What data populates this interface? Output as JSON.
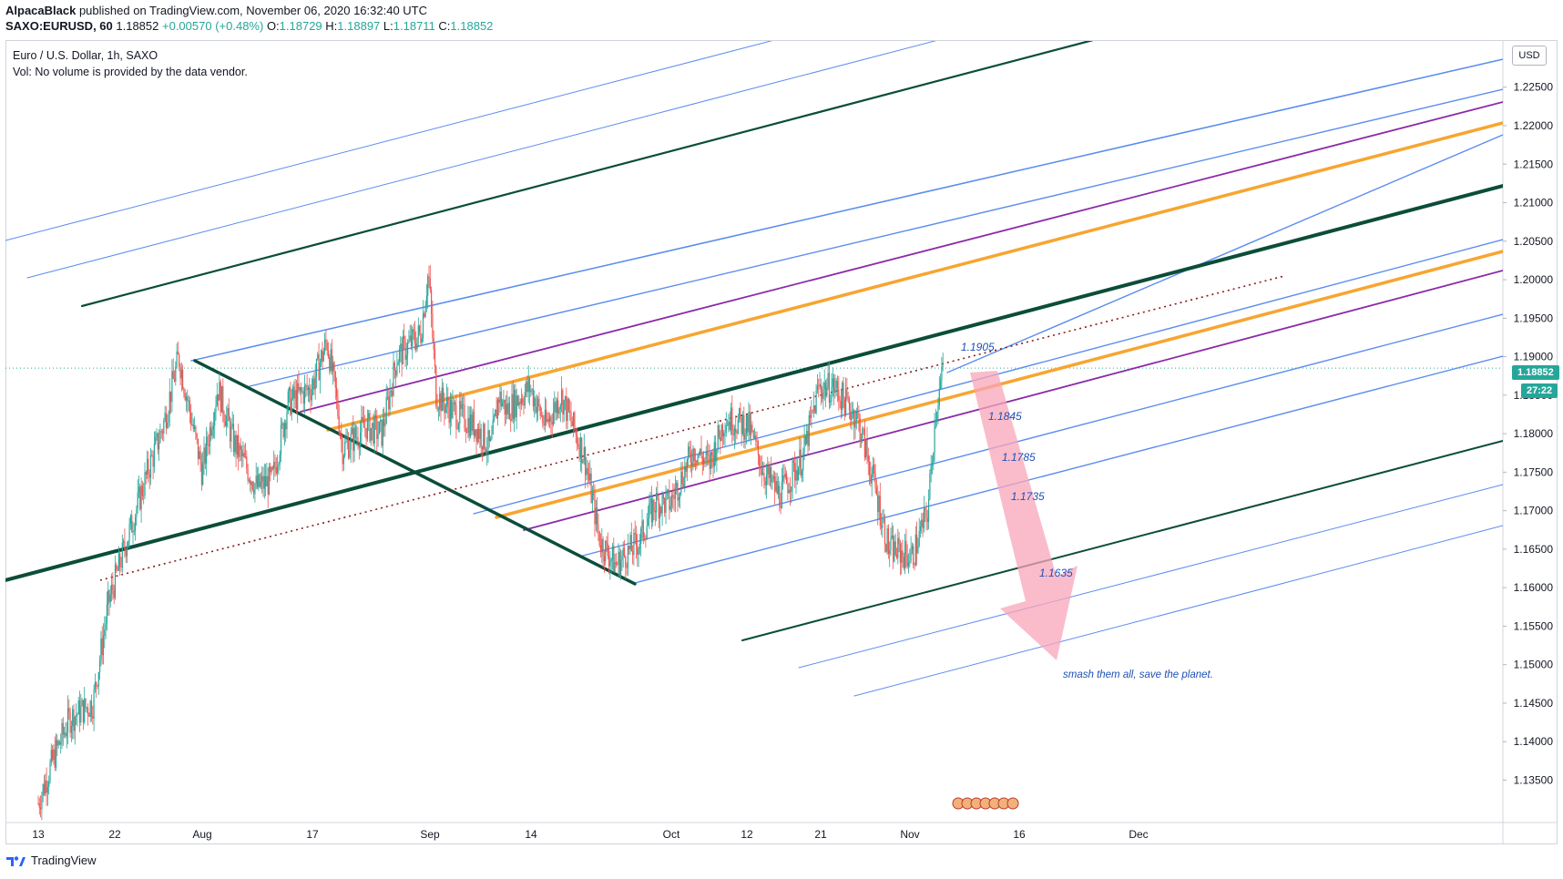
{
  "header": {
    "author": "AlpacaBlack",
    "published": "published on TradingView.com, November 06, 2020 16:32:40 UTC",
    "symbol": "SAXO:EURUSD, 60",
    "last": "1.18852",
    "change": "+0.00570 (+0.48%)",
    "o_label": "O:",
    "o": "1.18729",
    "h_label": "H:",
    "h": "1.18897",
    "l_label": "L:",
    "l": "1.18711",
    "c_label": "C:",
    "c": "1.18852"
  },
  "legend": {
    "title": "Euro / U.S. Dollar, 1h, SAXO",
    "volume_note": "Vol: No volume is provided by the data vendor."
  },
  "price_axis": {
    "currency": "USD",
    "current_price": "1.18852",
    "countdown": "27:22"
  },
  "footer": {
    "brand": "TradingView"
  },
  "colors": {
    "up": "#26a69a",
    "down": "#ef5350",
    "blue_line": "#5b8def",
    "dark_green": "#0b4d3a",
    "orange": "#f7a531",
    "purple": "#8a2aa8",
    "dotted": "#8b1a1a",
    "price_tag": "#26a69a",
    "arrow": "#f8a5b9"
  },
  "chart_data": {
    "type": "candlestick",
    "title": "Euro / U.S. Dollar, 1h, SAXO",
    "x_ticks": [
      "13",
      "22",
      "Aug",
      "17",
      "Sep",
      "14",
      "Oct",
      "12",
      "21",
      "Nov",
      "16",
      "Dec"
    ],
    "y_ticks": [
      "1.13500",
      "1.14000",
      "1.14500",
      "1.15000",
      "1.15500",
      "1.16000",
      "1.16500",
      "1.17000",
      "1.17500",
      "1.18000",
      "1.18500",
      "1.19000",
      "1.19500",
      "1.20000",
      "1.20500",
      "1.21000",
      "1.21500",
      "1.22000",
      "1.22500"
    ],
    "ylim": [
      1.1295,
      1.231
    ],
    "price_path": [
      [
        "2020-07-13",
        1.132
      ],
      [
        "2020-07-15",
        1.138
      ],
      [
        "2020-07-17",
        1.143
      ],
      [
        "2020-07-20",
        1.145
      ],
      [
        "2020-07-22",
        1.158
      ],
      [
        "2020-07-24",
        1.165
      ],
      [
        "2020-07-27",
        1.175
      ],
      [
        "2020-07-29",
        1.181
      ],
      [
        "2020-07-31",
        1.19
      ],
      [
        "2020-08-03",
        1.175
      ],
      [
        "2020-08-05",
        1.186
      ],
      [
        "2020-08-07",
        1.179
      ],
      [
        "2020-08-10",
        1.173
      ],
      [
        "2020-08-12",
        1.174
      ],
      [
        "2020-08-14",
        1.184
      ],
      [
        "2020-08-17",
        1.186
      ],
      [
        "2020-08-19",
        1.192
      ],
      [
        "2020-08-20",
        1.186
      ],
      [
        "2020-08-21",
        1.178
      ],
      [
        "2020-08-24",
        1.181
      ],
      [
        "2020-08-26",
        1.18
      ],
      [
        "2020-08-28",
        1.19
      ],
      [
        "2020-08-31",
        1.193
      ],
      [
        "2020-09-01",
        1.201
      ],
      [
        "2020-09-02",
        1.185
      ],
      [
        "2020-09-04",
        1.183
      ],
      [
        "2020-09-07",
        1.181
      ],
      [
        "2020-09-09",
        1.178
      ],
      [
        "2020-09-10",
        1.185
      ],
      [
        "2020-09-11",
        1.183
      ],
      [
        "2020-09-14",
        1.186
      ],
      [
        "2020-09-16",
        1.181
      ],
      [
        "2020-09-18",
        1.185
      ],
      [
        "2020-09-21",
        1.177
      ],
      [
        "2020-09-23",
        1.166
      ],
      [
        "2020-09-25",
        1.163
      ],
      [
        "2020-09-28",
        1.166
      ],
      [
        "2020-09-30",
        1.171
      ],
      [
        "2020-10-02",
        1.171
      ],
      [
        "2020-10-05",
        1.178
      ],
      [
        "2020-10-07",
        1.176
      ],
      [
        "2020-10-09",
        1.182
      ],
      [
        "2020-10-12",
        1.181
      ],
      [
        "2020-10-14",
        1.175
      ],
      [
        "2020-10-16",
        1.172
      ],
      [
        "2020-10-19",
        1.177
      ],
      [
        "2020-10-21",
        1.186
      ],
      [
        "2020-10-23",
        1.186
      ],
      [
        "2020-10-26",
        1.182
      ],
      [
        "2020-10-28",
        1.174
      ],
      [
        "2020-10-30",
        1.165
      ],
      [
        "2020-11-02",
        1.164
      ],
      [
        "2020-11-04",
        1.17
      ],
      [
        "2020-11-05",
        1.183
      ],
      [
        "2020-11-06",
        1.1885
      ]
    ],
    "annotations": [
      "1.1905",
      "1.1845",
      "1.1785",
      "1.1735",
      "1.1635",
      "smash them all, save the planet."
    ]
  }
}
